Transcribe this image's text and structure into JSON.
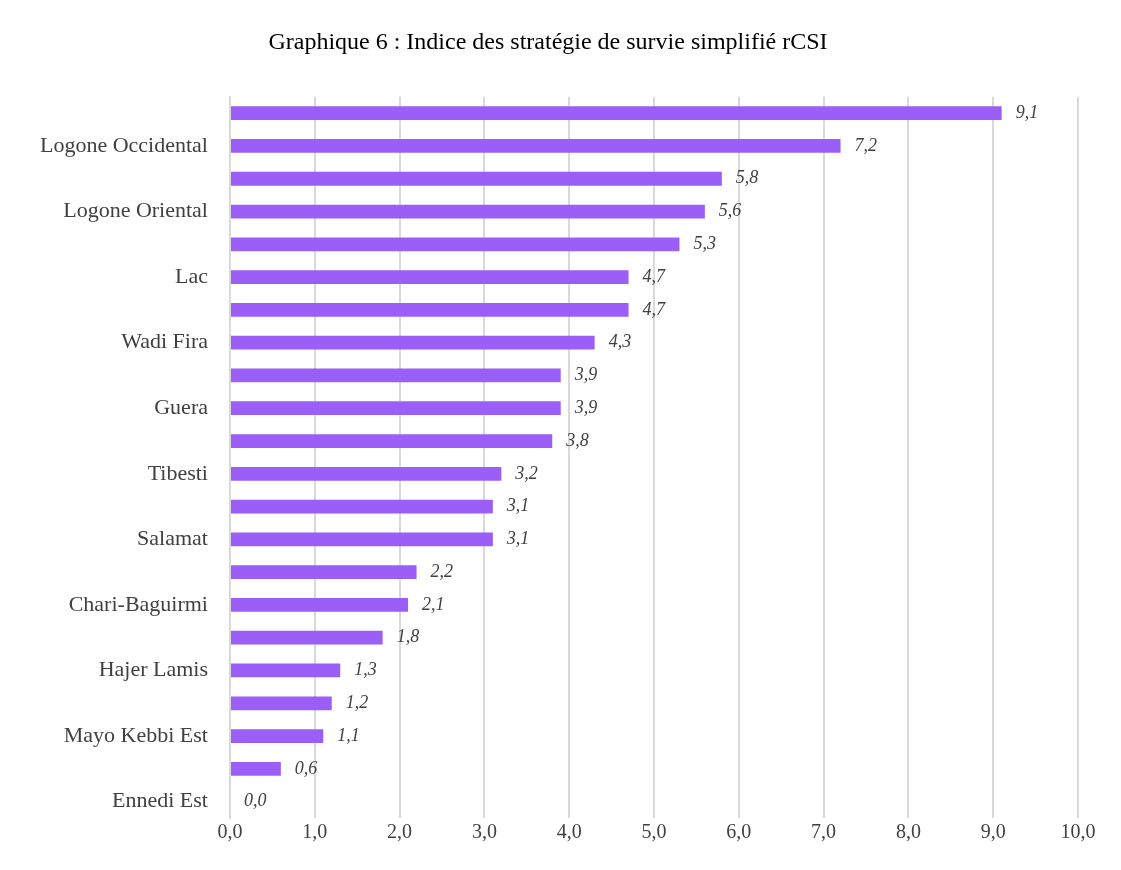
{
  "chart_data": {
    "type": "bar",
    "orientation": "horizontal",
    "title": "Graphique 6 : Indice des stratégie de survie simplifié rCSI",
    "categories": [
      null,
      "Logone Occidental",
      null,
      "Logone Oriental",
      null,
      "Lac",
      null,
      "Wadi Fira",
      null,
      "Guera",
      null,
      "Tibesti",
      null,
      "Salamat",
      null,
      "Chari-Baguirmi",
      null,
      "Hajer Lamis",
      null,
      "Mayo Kebbi Est",
      null,
      "Ennedi Est"
    ],
    "values": [
      9.1,
      7.2,
      5.8,
      5.6,
      5.3,
      4.7,
      4.7,
      4.3,
      3.9,
      3.9,
      3.8,
      3.2,
      3.1,
      3.1,
      2.2,
      2.1,
      1.8,
      1.3,
      1.2,
      1.1,
      0.6,
      0.0
    ],
    "value_labels": [
      "9,1",
      "7,2",
      "5,8",
      "5,6",
      "5,3",
      "4,7",
      "4,7",
      "4,3",
      "3,9",
      "3,9",
      "3,8",
      "3,2",
      "3,1",
      "3,1",
      "2,2",
      "2,1",
      "1,8",
      "1,3",
      "1,2",
      "1,1",
      "0,6",
      "0,0"
    ],
    "color": "#9b5ff7",
    "xlim": [
      0,
      10
    ],
    "xticks": [
      {
        "value": 0,
        "label": "0,0"
      },
      {
        "value": 1,
        "label": "1,0"
      },
      {
        "value": 2,
        "label": "2,0"
      },
      {
        "value": 3,
        "label": "3,0"
      },
      {
        "value": 4,
        "label": "4,0"
      },
      {
        "value": 5,
        "label": "5,0"
      },
      {
        "value": 6,
        "label": "6,0"
      },
      {
        "value": 7,
        "label": "7,0"
      },
      {
        "value": 8,
        "label": "8,0"
      },
      {
        "value": 9,
        "label": "9,0"
      },
      {
        "value": 10,
        "label": "10,0"
      }
    ],
    "grid": "x",
    "legend": false
  }
}
